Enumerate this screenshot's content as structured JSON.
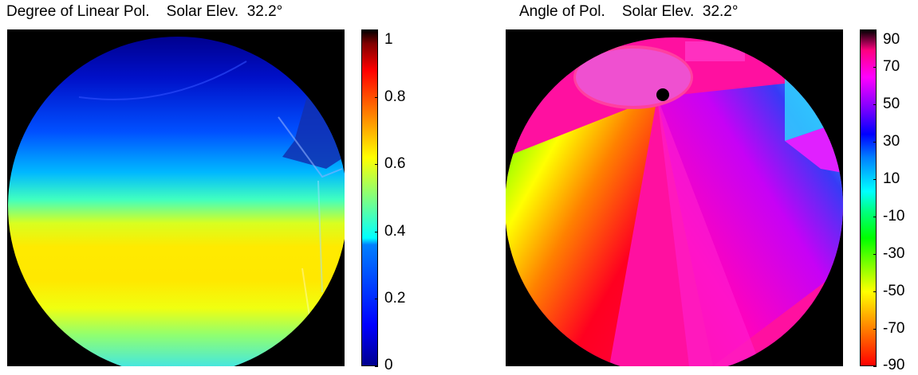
{
  "chart_data": [
    {
      "type": "heatmap",
      "title": "Degree of Linear Pol.    Solar Elev.  32.2°",
      "colorbar": {
        "colormap": "jet",
        "range": [
          0,
          1
        ],
        "tick_values": [
          0,
          0.2,
          0.4,
          0.6,
          0.8,
          1
        ],
        "tick_labels": [
          "0",
          "0.2",
          "0.4",
          "0.6",
          "0.8",
          "1"
        ]
      }
    },
    {
      "type": "heatmap",
      "title": "Angle of Pol.    Solar Elev.  32.2°",
      "colorbar": {
        "colormap": "hsv",
        "range": [
          -90,
          90
        ],
        "tick_values": [
          90,
          70,
          50,
          30,
          10,
          -10,
          -30,
          -50,
          -70,
          -90
        ],
        "tick_labels": [
          "90",
          "70",
          "50",
          "30",
          "10",
          "-10",
          "-30",
          "-50",
          "-70",
          "-90"
        ]
      }
    }
  ]
}
